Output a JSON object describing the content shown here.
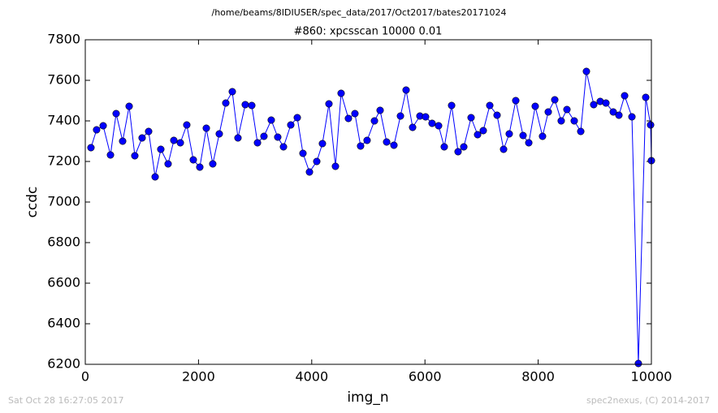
{
  "chart_data": {
    "type": "line",
    "suptitle": "/home/beams/8IDIUSER/spec_data/2017/Oct2017/bates20171024",
    "title": "#860: xpcsscan 10000 0.01",
    "xlabel": "img_n",
    "ylabel": "ccdc",
    "color": "#0000ff",
    "x": [
      100,
      200,
      316,
      445,
      545,
      660,
      775,
      875,
      1004,
      1119,
      1234,
      1334,
      1463,
      1564,
      1679,
      1793,
      1908,
      2023,
      2138,
      2252,
      2367,
      2482,
      2597,
      2697,
      2826,
      2941,
      3042,
      3156,
      3285,
      3400,
      3501,
      3630,
      3745,
      3845,
      3960,
      4089,
      4189,
      4304,
      4419,
      4519,
      4648,
      4763,
      4863,
      4978,
      5108,
      5208,
      5323,
      5452,
      5567,
      5667,
      5782,
      5911,
      6011,
      6126,
      6241,
      6341,
      6471,
      6585,
      6686,
      6815,
      6930,
      7030,
      7145,
      7274,
      7389,
      7489,
      7604,
      7733,
      7834,
      7948,
      8077,
      8178,
      8293,
      8407,
      8508,
      8637,
      8752,
      8852,
      8981,
      9096,
      9197,
      9326,
      9426,
      9527,
      9656,
      9770,
      9900,
      9986,
      10000
    ],
    "values": [
      7268,
      7356,
      7376,
      7232,
      7436,
      7300,
      7472,
      7228,
      7316,
      7348,
      7124,
      7260,
      7188,
      7304,
      7292,
      7380,
      7208,
      7172,
      7364,
      7188,
      7336,
      7488,
      7544,
      7316,
      7480,
      7476,
      7292,
      7324,
      7404,
      7320,
      7272,
      7380,
      7416,
      7240,
      7148,
      7200,
      7288,
      7484,
      7176,
      7536,
      7412,
      7436,
      7276,
      7304,
      7400,
      7452,
      7296,
      7280,
      7424,
      7552,
      7368,
      7424,
      7420,
      7388,
      7376,
      7272,
      7476,
      7248,
      7272,
      7416,
      7332,
      7352,
      7476,
      7428,
      7260,
      7336,
      7500,
      7328,
      7292,
      7472,
      7324,
      7444,
      7504,
      7400,
      7456,
      7400,
      7348,
      7644,
      7480,
      7496,
      7488,
      7444,
      7428,
      7524,
      7420,
      6204,
      7516,
      7380,
      7204
    ],
    "xlim": [
      0,
      10000
    ],
    "xticks": [
      0,
      2000,
      4000,
      6000,
      8000,
      10000
    ],
    "ylim": [
      6200,
      7800
    ],
    "yticks": [
      6200,
      6400,
      6600,
      6800,
      7000,
      7200,
      7400,
      7600,
      7800
    ]
  },
  "footer": {
    "left": "Sat Oct 28 16:27:05 2017",
    "right": "spec2nexus, (C) 2014-2017"
  }
}
